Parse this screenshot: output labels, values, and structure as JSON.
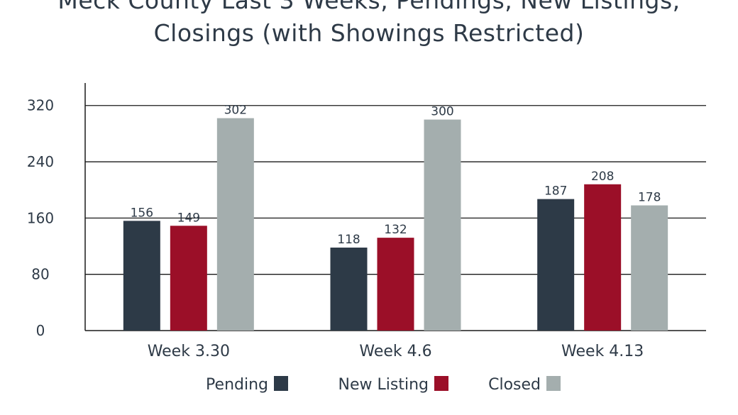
{
  "chart_data": {
    "type": "bar",
    "title_line1": "Meck County Last 3 Weeks, Pendings, New Listings,",
    "title_line2": "Closings (with Showings Restricted)",
    "categories": [
      "Week 3.30",
      "Week 4.6",
      "Week 4.13"
    ],
    "series": [
      {
        "name": "Pending",
        "color": "#2d3a47",
        "values": [
          156,
          118,
          187
        ]
      },
      {
        "name": "New Listing",
        "color": "#9b0f28",
        "values": [
          149,
          132,
          208
        ]
      },
      {
        "name": "Closed",
        "color": "#a4aeae",
        "values": [
          302,
          300,
          178
        ]
      }
    ],
    "yticks": [
      0,
      80,
      160,
      240,
      320
    ],
    "ylim": [
      0,
      352
    ],
    "grid": true,
    "legend_position": "bottom"
  }
}
